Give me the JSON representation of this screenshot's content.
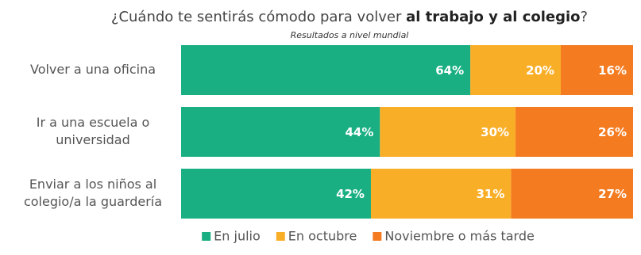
{
  "chart_data": {
    "type": "stacked-bar-horizontal",
    "title": [
      "¿Cuándo te sentirás cómodo para volver ",
      "al trabajo y al colegio",
      "?"
    ],
    "subtitle": "Resultados a nivel mundial",
    "categories": [
      [
        "Volver a una oficina"
      ],
      [
        "Ir a una escuela o",
        "universidad"
      ],
      [
        "Enviar a los niños al",
        "colegio/a la guardería"
      ]
    ],
    "xlim": [
      0,
      100
    ],
    "series": [
      {
        "name": "En julio",
        "color": "#1aaf82",
        "values": [
          64,
          44,
          42
        ],
        "value_labels": [
          "64%",
          "44%",
          "42%"
        ]
      },
      {
        "name": "En octubre",
        "color": "#f9ae27",
        "values": [
          20,
          30,
          31
        ],
        "value_labels": [
          "20%",
          "30%",
          "31%"
        ]
      },
      {
        "name": "Noviembre o más tarde",
        "color": "#f47b20",
        "values": [
          16,
          26,
          27
        ],
        "value_labels": [
          "16%",
          "26%",
          "27%"
        ]
      }
    ],
    "legend": "bottom"
  }
}
